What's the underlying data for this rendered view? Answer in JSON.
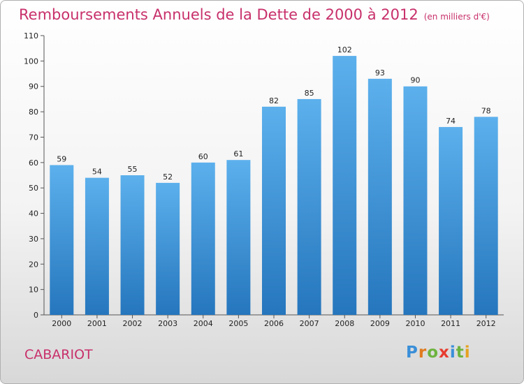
{
  "chart_data": {
    "type": "bar",
    "title": "Remboursements Annuels de la Dette de 2000 à 2012",
    "subtitle": "(en milliers d'€)",
    "categories": [
      "2000",
      "2001",
      "2002",
      "2003",
      "2004",
      "2005",
      "2006",
      "2007",
      "2008",
      "2009",
      "2010",
      "2011",
      "2012"
    ],
    "values": [
      59,
      54,
      55,
      52,
      60,
      61,
      82,
      85,
      102,
      93,
      90,
      74,
      78
    ],
    "ylim": [
      0,
      110
    ],
    "yticks": [
      0,
      10,
      20,
      30,
      40,
      50,
      60,
      70,
      80,
      90,
      100,
      110
    ],
    "grid": false,
    "bar_color": "#3a8fd8",
    "data_labels": true
  },
  "commune": "CABARIOT",
  "logo": {
    "letters": [
      "P",
      "r",
      "o",
      "x",
      "i",
      "t",
      "i"
    ],
    "colors": [
      "#3a8fd8",
      "#e07b1f",
      "#6db33f",
      "#e63c2f",
      "#3a8fd8",
      "#6db33f",
      "#e6a21f"
    ]
  }
}
